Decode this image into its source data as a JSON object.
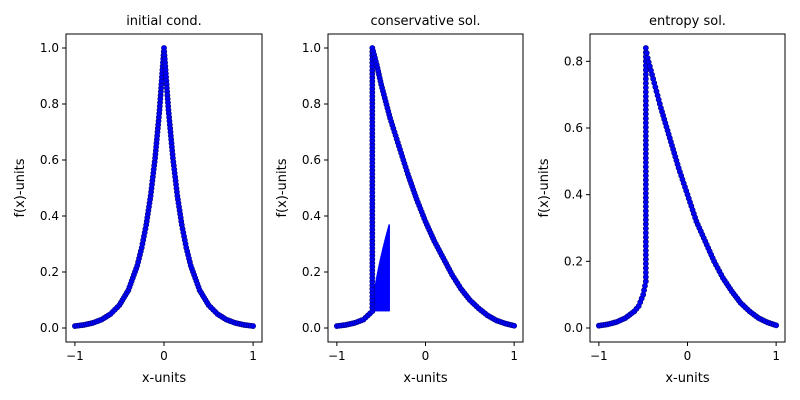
{
  "chart_data": [
    {
      "type": "scatter",
      "title": "initial cond.",
      "xlabel": "x-units",
      "ylabel": "f(x)-units",
      "xlim": [
        -1.1,
        1.1
      ],
      "ylim": [
        -0.05,
        1.05
      ],
      "xticks": [
        -1,
        0,
        1
      ],
      "yticks": [
        0.0,
        0.2,
        0.4,
        0.6,
        0.8,
        1.0
      ],
      "xtick_labels": [
        "−1",
        "0",
        "1"
      ],
      "ytick_labels": [
        "0.0",
        "0.2",
        "0.4",
        "0.6",
        "0.8",
        "1.0"
      ],
      "series": [
        {
          "x": [
            -1.0,
            -0.9,
            -0.8,
            -0.7,
            -0.6,
            -0.5,
            -0.4,
            -0.3,
            -0.25,
            -0.2,
            -0.15,
            -0.1,
            -0.05,
            0.0,
            0.05,
            0.1,
            0.15,
            0.2,
            0.25,
            0.3,
            0.4,
            0.5,
            0.6,
            0.7,
            0.8,
            0.9,
            1.0
          ],
          "y": [
            0.007,
            0.011,
            0.018,
            0.03,
            0.05,
            0.082,
            0.135,
            0.223,
            0.287,
            0.368,
            0.472,
            0.607,
            0.779,
            1.0,
            0.779,
            0.607,
            0.472,
            0.368,
            0.287,
            0.223,
            0.135,
            0.082,
            0.05,
            0.03,
            0.018,
            0.011,
            0.007
          ]
        }
      ]
    },
    {
      "type": "scatter",
      "title": "conservative sol.",
      "xlabel": "x-units",
      "ylabel": "f(x)-units",
      "xlim": [
        -1.1,
        1.1
      ],
      "ylim": [
        -0.05,
        1.05
      ],
      "xticks": [
        -1,
        0,
        1
      ],
      "yticks": [
        0.0,
        0.2,
        0.4,
        0.6,
        0.8,
        1.0
      ],
      "xtick_labels": [
        "−1",
        "0",
        "1"
      ],
      "ytick_labels": [
        "0.0",
        "0.2",
        "0.4",
        "0.6",
        "0.8",
        "1.0"
      ],
      "oscillation_band": {
        "x_start": -0.6,
        "x_end": -0.41,
        "y_low": 0.06,
        "y_high": 0.37
      },
      "series": [
        {
          "x": [
            -1.0,
            -0.9,
            -0.8,
            -0.7,
            -0.6,
            -0.6,
            -0.55,
            -0.5,
            -0.45,
            -0.4,
            -0.3,
            -0.2,
            -0.1,
            0.0,
            0.1,
            0.2,
            0.3,
            0.4,
            0.5,
            0.6,
            0.7,
            0.8,
            0.9,
            1.0
          ],
          "y": [
            0.007,
            0.011,
            0.018,
            0.03,
            0.06,
            1.0,
            0.94,
            0.87,
            0.81,
            0.75,
            0.65,
            0.55,
            0.46,
            0.38,
            0.31,
            0.25,
            0.19,
            0.14,
            0.1,
            0.07,
            0.045,
            0.027,
            0.016,
            0.008
          ]
        }
      ]
    },
    {
      "type": "scatter",
      "title": "entropy sol.",
      "xlabel": "x-units",
      "ylabel": "f(x)-units",
      "xlim": [
        -1.1,
        1.1
      ],
      "ylim": [
        -0.042,
        0.882
      ],
      "xticks": [
        -1,
        0,
        1
      ],
      "yticks": [
        0.0,
        0.2,
        0.4,
        0.6,
        0.8
      ],
      "xtick_labels": [
        "−1",
        "0",
        "1"
      ],
      "ytick_labels": [
        "0.0",
        "0.2",
        "0.4",
        "0.6",
        "0.8"
      ],
      "series": [
        {
          "x": [
            -1.0,
            -0.9,
            -0.8,
            -0.7,
            -0.6,
            -0.55,
            -0.5,
            -0.47,
            -0.47,
            -0.45,
            -0.4,
            -0.35,
            -0.3,
            -0.2,
            -0.1,
            0.0,
            0.1,
            0.2,
            0.3,
            0.4,
            0.5,
            0.6,
            0.7,
            0.8,
            0.9,
            1.0
          ],
          "y": [
            0.007,
            0.011,
            0.018,
            0.03,
            0.05,
            0.066,
            0.1,
            0.14,
            0.84,
            0.81,
            0.76,
            0.71,
            0.66,
            0.57,
            0.48,
            0.4,
            0.32,
            0.26,
            0.2,
            0.15,
            0.11,
            0.075,
            0.05,
            0.03,
            0.017,
            0.008
          ]
        }
      ]
    }
  ]
}
